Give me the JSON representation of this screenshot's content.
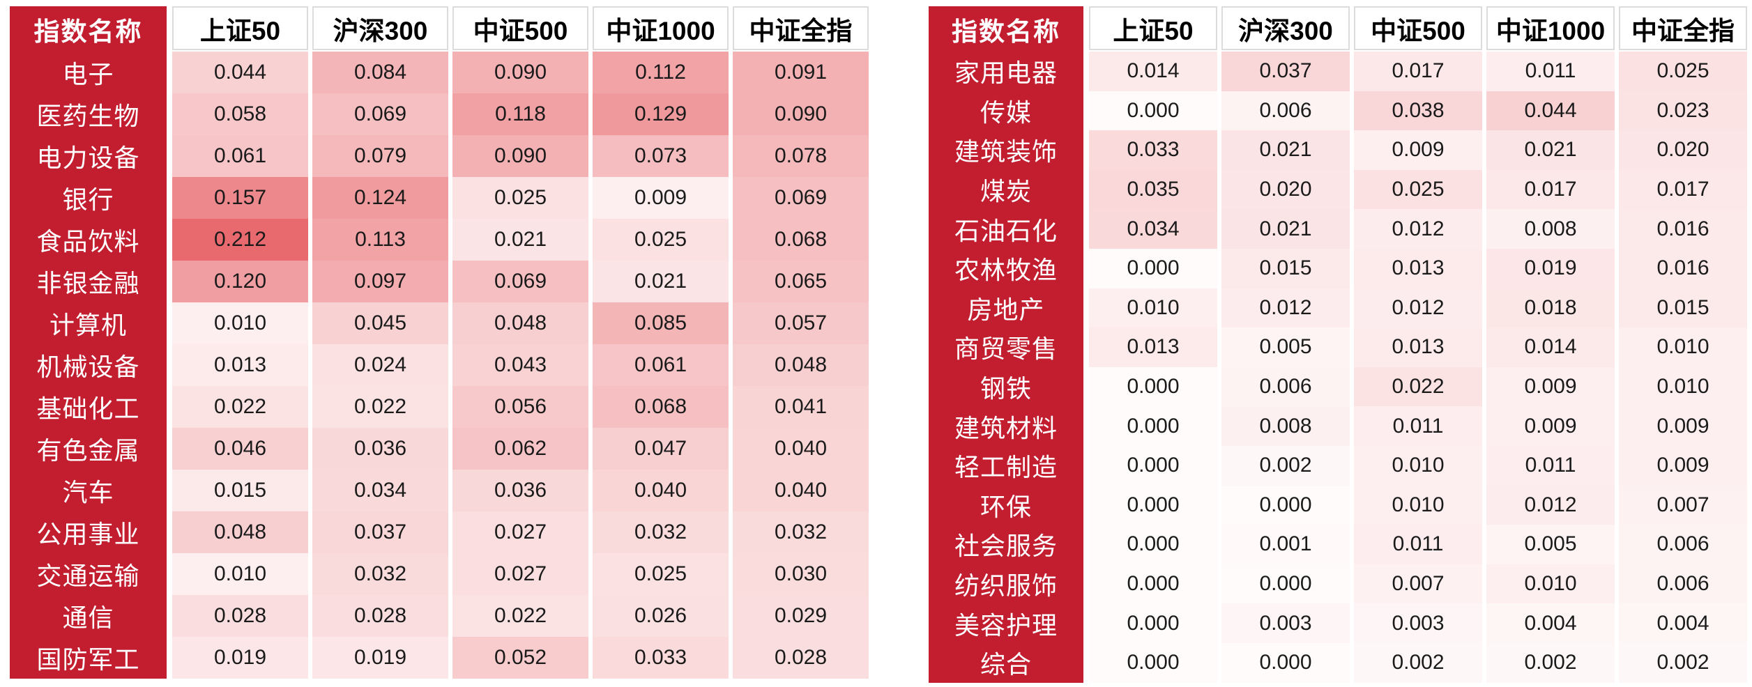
{
  "colors": {
    "page_bg": "#FFFFFF",
    "index_column_bg": "#C21E30",
    "index_text": "#FFFFFF",
    "column_header_bg": "#FFFFFF",
    "column_header_text": "#000000",
    "column_header_border": "#DCDCDC",
    "value_text": "#1A1A1A"
  },
  "colormap": {
    "min_value": 0.0,
    "max_value": 0.212,
    "gamma": 0.8,
    "min_color": "#FFFBFB",
    "max_color": "#E8696E"
  },
  "value_format_decimals": 3,
  "chart_data": [
    {
      "type": "heatmap",
      "title": "",
      "index_header": "指数名称",
      "columns": [
        "上证50",
        "沪深300",
        "中证500",
        "中证1000",
        "中证全指"
      ],
      "rows": [
        "电子",
        "医药生物",
        "电力设备",
        "银行",
        "食品饮料",
        "非银金融",
        "计算机",
        "机械设备",
        "基础化工",
        "有色金属",
        "汽车",
        "公用事业",
        "交通运输",
        "通信",
        "国防军工"
      ],
      "values": [
        [
          0.044,
          0.084,
          0.09,
          0.112,
          0.091
        ],
        [
          0.058,
          0.069,
          0.118,
          0.129,
          0.09
        ],
        [
          0.061,
          0.079,
          0.09,
          0.073,
          0.078
        ],
        [
          0.157,
          0.124,
          0.025,
          0.009,
          0.069
        ],
        [
          0.212,
          0.113,
          0.021,
          0.025,
          0.068
        ],
        [
          0.12,
          0.097,
          0.069,
          0.021,
          0.065
        ],
        [
          0.01,
          0.045,
          0.048,
          0.085,
          0.057
        ],
        [
          0.013,
          0.024,
          0.043,
          0.061,
          0.048
        ],
        [
          0.022,
          0.022,
          0.056,
          0.068,
          0.041
        ],
        [
          0.046,
          0.036,
          0.062,
          0.047,
          0.04
        ],
        [
          0.015,
          0.034,
          0.036,
          0.04,
          0.04
        ],
        [
          0.048,
          0.037,
          0.027,
          0.032,
          0.032
        ],
        [
          0.01,
          0.032,
          0.027,
          0.025,
          0.03
        ],
        [
          0.028,
          0.028,
          0.022,
          0.026,
          0.029
        ],
        [
          0.019,
          0.019,
          0.052,
          0.033,
          0.028
        ]
      ]
    },
    {
      "type": "heatmap",
      "title": "",
      "index_header": "指数名称",
      "columns": [
        "上证50",
        "沪深300",
        "中证500",
        "中证1000",
        "中证全指"
      ],
      "rows": [
        "家用电器",
        "传媒",
        "建筑装饰",
        "煤炭",
        "石油石化",
        "农林牧渔",
        "房地产",
        "商贸零售",
        "钢铁",
        "建筑材料",
        "轻工制造",
        "环保",
        "社会服务",
        "纺织服饰",
        "美容护理",
        "综合"
      ],
      "values": [
        [
          0.014,
          0.037,
          0.017,
          0.011,
          0.025
        ],
        [
          0.0,
          0.006,
          0.038,
          0.044,
          0.023
        ],
        [
          0.033,
          0.021,
          0.009,
          0.021,
          0.02
        ],
        [
          0.035,
          0.02,
          0.025,
          0.017,
          0.017
        ],
        [
          0.034,
          0.021,
          0.012,
          0.008,
          0.016
        ],
        [
          0.0,
          0.015,
          0.013,
          0.019,
          0.016
        ],
        [
          0.01,
          0.012,
          0.012,
          0.018,
          0.015
        ],
        [
          0.013,
          0.005,
          0.013,
          0.014,
          0.01
        ],
        [
          0.0,
          0.006,
          0.022,
          0.009,
          0.01
        ],
        [
          0.0,
          0.008,
          0.011,
          0.009,
          0.009
        ],
        [
          0.0,
          0.002,
          0.01,
          0.011,
          0.009
        ],
        [
          0.0,
          0.0,
          0.01,
          0.012,
          0.007
        ],
        [
          0.0,
          0.001,
          0.011,
          0.005,
          0.006
        ],
        [
          0.0,
          0.0,
          0.007,
          0.01,
          0.006
        ],
        [
          0.0,
          0.003,
          0.003,
          0.004,
          0.004
        ],
        [
          0.0,
          0.0,
          0.002,
          0.002,
          0.002
        ]
      ]
    }
  ]
}
